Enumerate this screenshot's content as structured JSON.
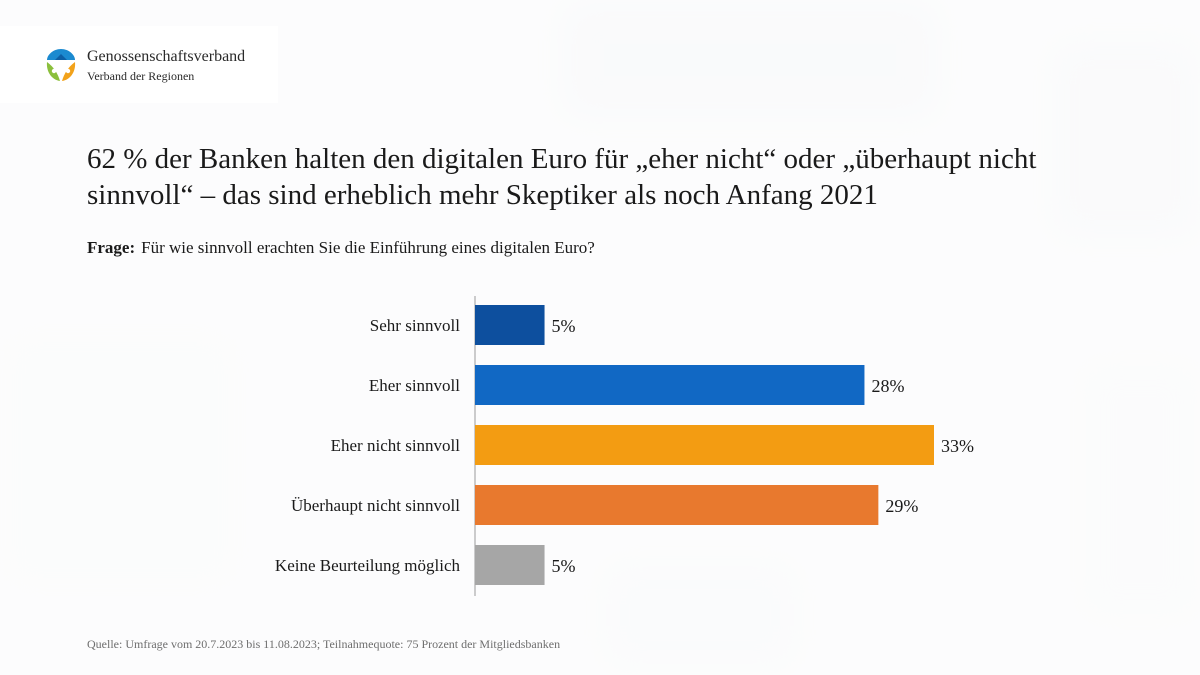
{
  "header": {
    "org_name": "Genossenschaftsverband",
    "org_subtitle": "Verband der Regionen"
  },
  "headline": "62 % der Banken halten den digitalen Euro für „eher nicht“ oder „überhaupt nicht sinnvoll“ – das sind erheblich mehr Skeptiker als noch Anfang 2021",
  "question": {
    "label": "Frage:",
    "text": "Für wie sinnvoll erachten Sie die Einführung eines digitalen Euro?"
  },
  "chart_data": {
    "type": "bar",
    "orientation": "horizontal",
    "title": "",
    "categories": [
      "Sehr sinnvoll",
      "Eher sinnvoll",
      "Eher nicht sinnvoll",
      "Überhaupt nicht sinnvoll",
      "Keine Beurteilung möglich"
    ],
    "values": [
      5,
      28,
      33,
      29,
      5
    ],
    "value_labels": [
      "5%",
      "28%",
      "33%",
      "29%",
      "5%"
    ],
    "colors": [
      "#0d4f9e",
      "#1168c4",
      "#f39c12",
      "#e8792e",
      "#a6a6a6"
    ],
    "xlabel": "",
    "ylabel": "",
    "xlim": [
      0,
      33
    ],
    "grid": false,
    "legend": "none"
  },
  "source": "Quelle: Umfrage vom 20.7.2023 bis 11.08.2023; Teilnahmequote: 75 Prozent der Mitgliedsbanken"
}
